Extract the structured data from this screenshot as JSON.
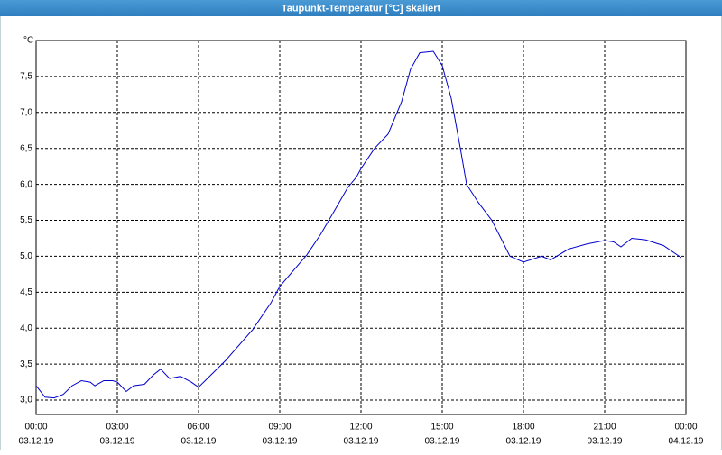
{
  "chart_data": {
    "type": "line",
    "title": "Taupunkt-Temperatur [°C] skaliert",
    "y_unit": "°C",
    "xlim": [
      0,
      24
    ],
    "ylim": [
      2.8,
      8.0
    ],
    "xticks": [
      {
        "value": 0,
        "label": "00:00"
      },
      {
        "value": 3,
        "label": "03:00"
      },
      {
        "value": 6,
        "label": "06:00"
      },
      {
        "value": 9,
        "label": "09:00"
      },
      {
        "value": 12,
        "label": "12:00"
      },
      {
        "value": 15,
        "label": "15:00"
      },
      {
        "value": 18,
        "label": "18:00"
      },
      {
        "value": 21,
        "label": "21:00"
      },
      {
        "value": 24,
        "label": "00:00"
      }
    ],
    "xtick_dates": [
      "03.12.19",
      "03.12.19",
      "03.12.19",
      "03.12.19",
      "03.12.19",
      "03.12.19",
      "03.12.19",
      "03.12.19",
      "04.12.19"
    ],
    "yticks": [
      {
        "value": 3,
        "label": "3,0"
      },
      {
        "value": 3.5,
        "label": "3,5"
      },
      {
        "value": 4,
        "label": "4,0"
      },
      {
        "value": 4.5,
        "label": "4,5"
      },
      {
        "value": 5,
        "label": "5,0"
      },
      {
        "value": 5.5,
        "label": "5,5"
      },
      {
        "value": 6,
        "label": "6,0"
      },
      {
        "value": 6.5,
        "label": "6,5"
      },
      {
        "value": 7,
        "label": "7,0"
      },
      {
        "value": 7.5,
        "label": "7,5"
      }
    ],
    "grid": true,
    "series": [
      {
        "color": "#0000cc",
        "x": [
          0,
          0.33,
          0.67,
          1,
          1.33,
          1.67,
          2,
          2.17,
          2.5,
          2.83,
          3,
          3.33,
          3.6,
          4,
          4.33,
          4.6,
          4.93,
          5.33,
          5.73,
          6,
          7,
          8,
          8.67,
          9,
          10,
          10.5,
          11,
          11.5,
          11.83,
          12,
          12.5,
          13,
          13.5,
          13.83,
          14.17,
          14.67,
          15,
          15.33,
          15.67,
          15.9,
          16.33,
          16.83,
          17.17,
          17.5,
          18,
          18.67,
          19,
          19.67,
          20.33,
          21,
          21.33,
          21.6,
          22,
          22.5,
          23.17,
          23.83
        ],
        "values": [
          3.2,
          3.04,
          3.03,
          3.08,
          3.2,
          3.27,
          3.25,
          3.2,
          3.27,
          3.27,
          3.25,
          3.12,
          3.2,
          3.22,
          3.35,
          3.43,
          3.3,
          3.33,
          3.25,
          3.18,
          3.55,
          3.98,
          4.35,
          4.58,
          5.02,
          5.3,
          5.62,
          5.95,
          6.1,
          6.22,
          6.5,
          6.7,
          7.15,
          7.6,
          7.83,
          7.85,
          7.65,
          7.2,
          6.5,
          6.0,
          5.75,
          5.5,
          5.25,
          5.0,
          4.92,
          5.0,
          4.95,
          5.1,
          5.17,
          5.22,
          5.2,
          5.13,
          5.25,
          5.23,
          5.15,
          4.98
        ]
      }
    ]
  }
}
